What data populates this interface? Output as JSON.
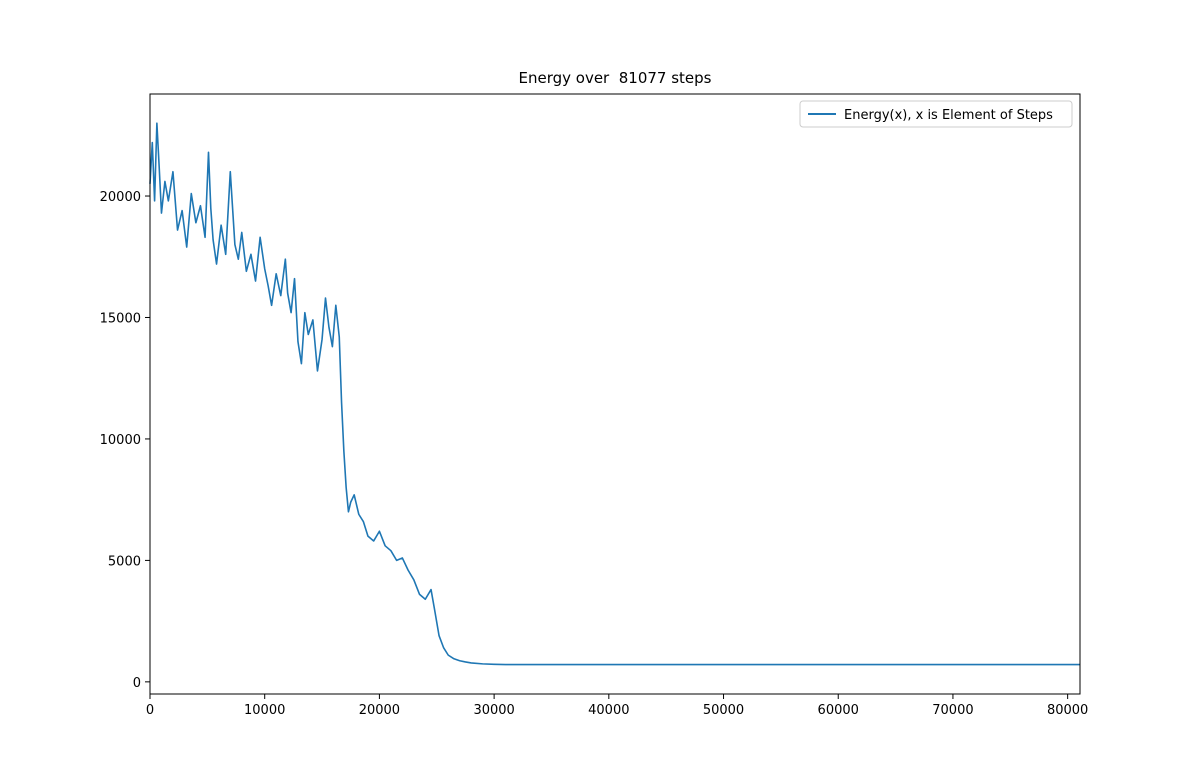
{
  "chart_data": {
    "type": "line",
    "title": "Energy over  81077 steps",
    "xlabel": "",
    "ylabel": "",
    "xlim": [
      0,
      81077
    ],
    "ylim": [
      -500,
      24200
    ],
    "x_ticks": [
      0,
      10000,
      20000,
      30000,
      40000,
      50000,
      60000,
      70000,
      80000
    ],
    "y_ticks": [
      0,
      5000,
      10000,
      15000,
      20000
    ],
    "grid": false,
    "legend_position": "top-right",
    "series": [
      {
        "name": "Energy(x), x is Element of Steps",
        "color": "#1f77b4",
        "x": [
          0,
          200,
          400,
          600,
          800,
          1000,
          1300,
          1600,
          2000,
          2400,
          2800,
          3200,
          3600,
          4000,
          4400,
          4800,
          5100,
          5300,
          5500,
          5800,
          6200,
          6600,
          7000,
          7400,
          7700,
          8000,
          8400,
          8800,
          9200,
          9600,
          10000,
          10300,
          10600,
          11000,
          11400,
          11800,
          12000,
          12300,
          12600,
          12900,
          13200,
          13500,
          13800,
          14200,
          14600,
          15000,
          15300,
          15600,
          15900,
          16200,
          16500,
          16700,
          16900,
          17100,
          17300,
          17500,
          17800,
          18200,
          18600,
          19000,
          19500,
          20000,
          20500,
          21000,
          21500,
          22000,
          22500,
          23000,
          23500,
          24000,
          24500,
          24800,
          25200,
          25600,
          26000,
          26500,
          27000,
          27500,
          28000,
          29000,
          30000,
          31000,
          35000,
          40000,
          50000,
          60000,
          70000,
          81077
        ],
        "values": [
          20500,
          22200,
          19800,
          23000,
          21200,
          19300,
          20600,
          19800,
          21000,
          18600,
          19400,
          17900,
          20100,
          18900,
          19600,
          18300,
          21800,
          19500,
          18200,
          17200,
          18800,
          17600,
          21000,
          18000,
          17400,
          18500,
          16900,
          17600,
          16500,
          18300,
          17000,
          16300,
          15500,
          16800,
          15900,
          17400,
          16000,
          15200,
          16600,
          14000,
          13100,
          15200,
          14300,
          14900,
          12800,
          14100,
          15800,
          14600,
          13800,
          15500,
          14200,
          11500,
          9500,
          8000,
          7000,
          7400,
          7700,
          6900,
          6600,
          6000,
          5800,
          6200,
          5600,
          5400,
          5000,
          5100,
          4600,
          4200,
          3600,
          3400,
          3800,
          3000,
          1900,
          1400,
          1100,
          950,
          870,
          820,
          780,
          740,
          720,
          710,
          710,
          710,
          710,
          710,
          710,
          710
        ]
      }
    ]
  }
}
